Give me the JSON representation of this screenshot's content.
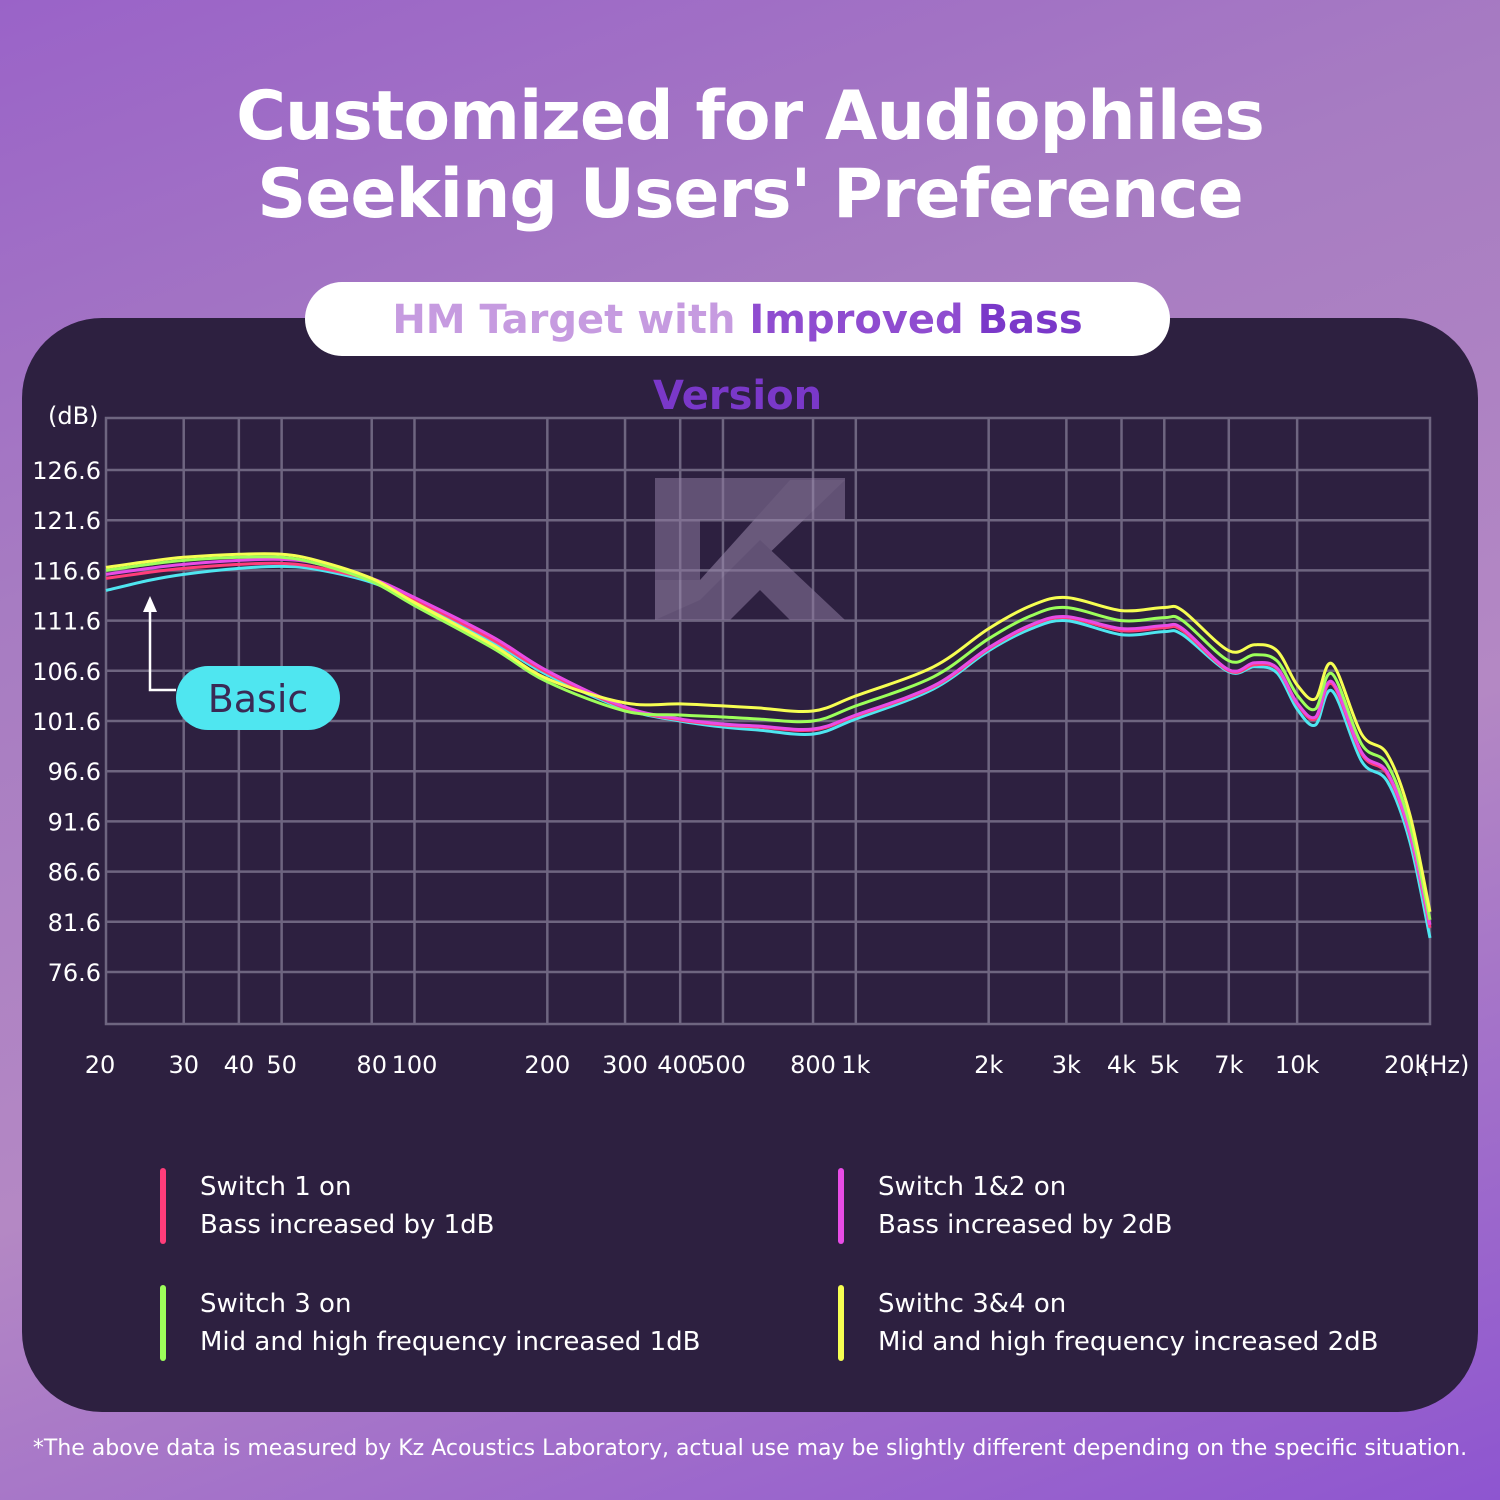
{
  "headline": {
    "line1": "Customized for Audiophiles",
    "line2": "Seeking Users' Preference"
  },
  "subtitle": {
    "part1": "HM Target with ",
    "part2": "Improved ",
    "part3": "Bass Version"
  },
  "footnote": "*The above data is measured by Kz Acoustics Laboratory, actual use may be slightly different depending on the specific situation.",
  "legend": [
    {
      "title": "Switch 1 on",
      "desc": "Bass increased by 1dB",
      "color": "#ff3d7a"
    },
    {
      "title": "Switch 1&2 on",
      "desc": "Bass increased by 2dB",
      "color": "#e84ce6"
    },
    {
      "title": "Switch 3 on",
      "desc": "Mid and high frequency increased 1dB",
      "color": "#9dff5a"
    },
    {
      "title": "Swithc 3&4 on",
      "desc": "Mid and high frequency increased 2dB",
      "color": "#f6ff52"
    }
  ],
  "chart_data": {
    "type": "line",
    "title": "HM Target with Improved Bass Version",
    "ylabel": "(dB)",
    "xlabel": "(Hz)",
    "x_scale": "log",
    "grid": true,
    "y_ticks": [
      "126.6",
      "121.6",
      "116.6",
      "111.6",
      "106.6",
      "101.6",
      "96.6",
      "91.6",
      "86.6",
      "81.6",
      "76.6"
    ],
    "y_tick_values": [
      126.6,
      121.6,
      116.6,
      111.6,
      106.6,
      101.6,
      96.6,
      91.6,
      86.6,
      81.6,
      76.6
    ],
    "x_ticks": [
      "20",
      "30",
      "40",
      "50",
      "80",
      "100",
      "200",
      "300",
      "400",
      "500",
      "800",
      "1k",
      "2k",
      "3k",
      "4k",
      "5k",
      "7k",
      "10k",
      "20k"
    ],
    "x_tick_values": [
      20,
      30,
      40,
      50,
      80,
      100,
      200,
      300,
      400,
      500,
      800,
      1000,
      2000,
      3000,
      4000,
      5000,
      7000,
      10000,
      20000
    ],
    "annotation": {
      "text": "Basic",
      "color": "#4fe6f0"
    },
    "x": [
      20,
      25,
      30,
      40,
      50,
      60,
      80,
      100,
      150,
      200,
      300,
      400,
      500,
      600,
      800,
      1000,
      1500,
      2000,
      2500,
      3000,
      4000,
      5000,
      5500,
      7000,
      8000,
      9000,
      10000,
      11000,
      12000,
      14000,
      16000,
      18000,
      20000
    ],
    "series": [
      {
        "name": "Basic",
        "color": "#4fe6f0",
        "values": [
          114.6,
          115.6,
          116.2,
          116.8,
          117.0,
          116.7,
          115.4,
          113.5,
          109.5,
          106.2,
          102.8,
          101.6,
          101.0,
          100.7,
          100.3,
          101.8,
          104.8,
          108.6,
          110.8,
          111.6,
          110.2,
          110.5,
          110.2,
          106.5,
          107.0,
          106.4,
          102.8,
          101.2,
          104.6,
          97.6,
          95.6,
          89.6,
          80.0
        ]
      },
      {
        "name": "Switch 1 on",
        "color": "#ff3d7a",
        "values": [
          115.8,
          116.4,
          116.8,
          117.2,
          117.3,
          116.9,
          115.6,
          113.7,
          109.7,
          106.4,
          102.9,
          101.7,
          101.2,
          101.0,
          100.7,
          102.1,
          105.0,
          108.8,
          111.1,
          111.9,
          110.6,
          110.9,
          110.6,
          106.6,
          107.2,
          106.8,
          103.3,
          101.8,
          105.3,
          98.3,
          96.3,
          90.3,
          81.0
        ]
      },
      {
        "name": "Switch 1&2 on",
        "color": "#e84ce6",
        "values": [
          116.2,
          116.8,
          117.2,
          117.6,
          117.7,
          117.3,
          115.8,
          113.9,
          110.0,
          106.6,
          103.0,
          101.8,
          101.3,
          101.1,
          100.8,
          102.2,
          105.1,
          108.9,
          111.2,
          112.0,
          110.8,
          111.1,
          110.8,
          106.7,
          107.4,
          106.9,
          103.4,
          102.0,
          105.5,
          98.5,
          96.5,
          90.5,
          81.3
        ]
      },
      {
        "name": "Switch 3 on",
        "color": "#9dff5a",
        "values": [
          116.6,
          117.2,
          117.6,
          117.9,
          117.9,
          117.3,
          115.5,
          113.1,
          108.9,
          105.5,
          102.6,
          102.2,
          102.0,
          101.8,
          101.6,
          103.1,
          106.0,
          109.8,
          112.1,
          112.9,
          111.6,
          111.9,
          111.6,
          107.6,
          108.2,
          107.6,
          104.2,
          102.8,
          106.3,
          99.3,
          97.3,
          91.3,
          81.8
        ]
      },
      {
        "name": "Swithc 3&4 on",
        "color": "#f6ff52",
        "values": [
          116.9,
          117.5,
          117.9,
          118.2,
          118.2,
          117.6,
          115.8,
          113.4,
          109.2,
          105.8,
          103.4,
          103.3,
          103.1,
          102.9,
          102.6,
          104.1,
          107.0,
          110.8,
          113.1,
          113.9,
          112.6,
          112.9,
          112.6,
          108.6,
          109.2,
          108.6,
          105.2,
          103.8,
          107.3,
          100.3,
          98.3,
          92.3,
          82.6
        ]
      }
    ]
  }
}
